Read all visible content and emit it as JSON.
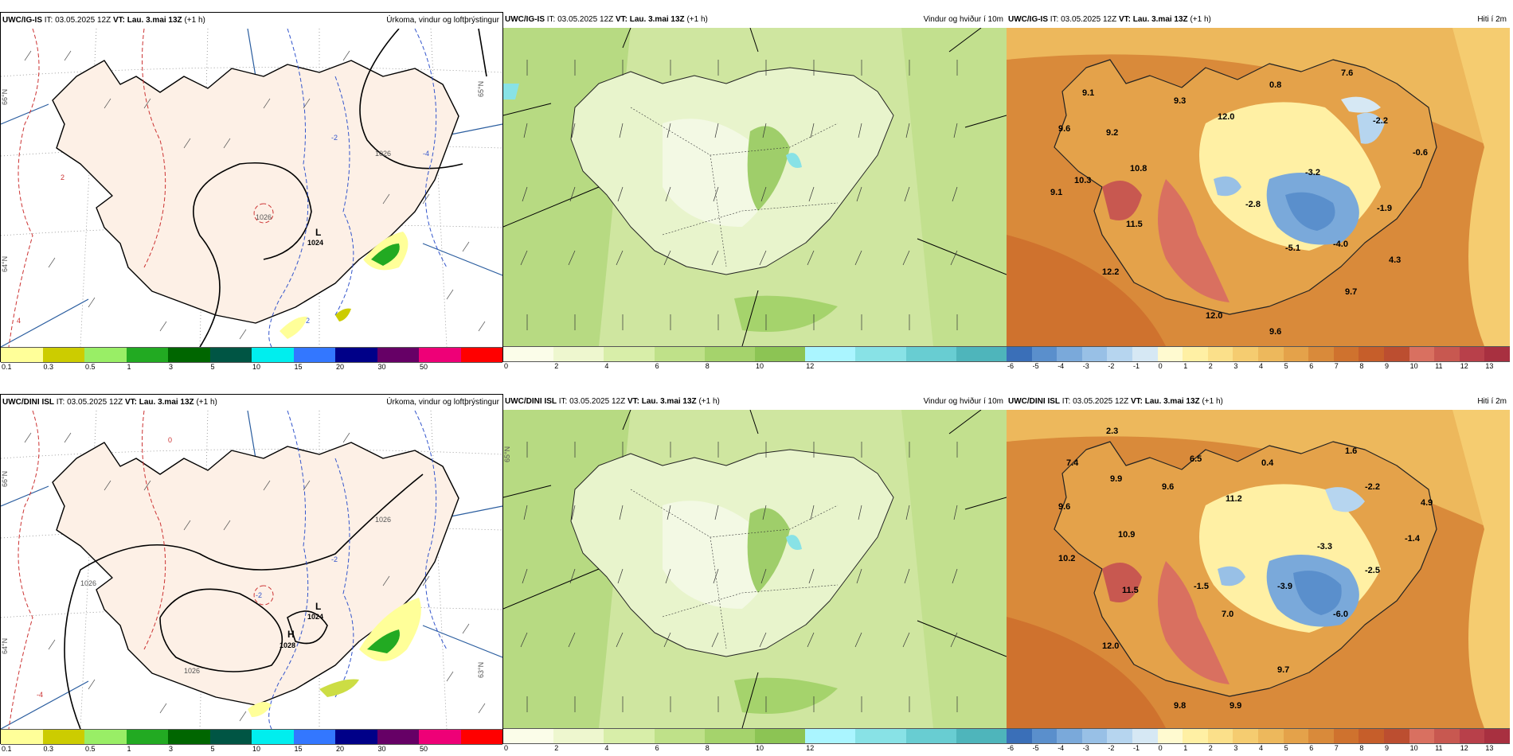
{
  "rows": [
    {
      "model": "UWC/IG-IS",
      "precip": {
        "it_label": "IT:",
        "it_value": "03.05.2025 12Z",
        "vt_label": "VT:",
        "vt_value": "Lau. 3.mai 13Z",
        "lead": "(+1 h)",
        "title_right": "Úrkoma, vindur og loftþrýstingur",
        "isobar_labels": [
          "1026",
          "1026",
          "1024"
        ],
        "pressure_centers": [
          {
            "sym": "L",
            "value": "1024"
          }
        ],
        "contour_labels": [
          "-2",
          "-2",
          "-4",
          "-2",
          "-2",
          "2",
          "4",
          "0",
          "-4"
        ]
      },
      "wind": {
        "it_label": "IT:",
        "it_value": "03.05.2025 12Z",
        "vt_label": "VT:",
        "vt_value": "Lau. 3.mai 13Z",
        "lead": "(+1 h)",
        "title_right": "Vindur og hviður í 10m"
      },
      "temp": {
        "it_label": "IT:",
        "it_value": "03.05.2025 12Z",
        "vt_label": "VT:",
        "vt_value": "Lau. 3.mai 13Z",
        "lead": "(+1 h)",
        "title_right": "Hiti í 2m",
        "labels": [
          "9.1",
          "9.6",
          "9.2",
          "9.3",
          "12.0",
          "0.8",
          "7.6",
          "-2.2",
          "-0.6",
          "10.8",
          "10.3",
          "9.1",
          "-3.2",
          "-2.8",
          "-1.9",
          "11.5",
          "-5.1",
          "-4.0",
          "4.3",
          "12.2",
          "9.7",
          "12.0",
          "9.6"
        ]
      }
    },
    {
      "model": "UWC/DINI ISL",
      "precip": {
        "it_label": "IT:",
        "it_value": "03.05.2025 12Z",
        "vt_label": "VT:",
        "vt_value": "Lau. 3.mai 13Z",
        "lead": "(+1 h)",
        "title_right": "Úrkoma, vindur og loftþrýstingur",
        "isobar_labels": [
          "1026",
          "1026",
          "1026",
          "1024",
          "1028"
        ],
        "pressure_centers": [
          {
            "sym": "L",
            "value": "1024"
          },
          {
            "sym": "H",
            "value": "1028"
          }
        ],
        "contour_labels": [
          "-2",
          "-2",
          "-4",
          "-2",
          "2",
          "0",
          "-4"
        ]
      },
      "wind": {
        "it_label": "IT:",
        "it_value": "03.05.2025 12Z",
        "vt_label": "VT:",
        "vt_value": "Lau. 3.mai 13Z",
        "lead": "(+1 h)",
        "title_right": "Vindur og hviður í 10m"
      },
      "temp": {
        "it_label": "IT:",
        "it_value": "03.05.2025 12Z",
        "vt_label": "VT:",
        "vt_value": "Lau. 3.mai 13Z",
        "lead": "(+1 h)",
        "title_right": "Hiti í 2m",
        "labels": [
          "2.3",
          "7.4",
          "9.9",
          "6.5",
          "0.4",
          "1.6",
          "9.6",
          "9.6",
          "11.2",
          "-2.2",
          "4.9",
          "10.9",
          "-1.4",
          "10.2",
          "-3.3",
          "11.5",
          "-1.5",
          "-3.9",
          "-2.5",
          "7.0",
          "-6.0",
          "12.0",
          "9.7",
          "9.8",
          "9.9"
        ]
      }
    }
  ],
  "lat_labels": [
    "66°N",
    "64°N",
    "65°N",
    "63°N"
  ],
  "colorbars": {
    "precip": {
      "colors": [
        "#ffff99",
        "#cccc00",
        "#99ee66",
        "#22aa22",
        "#006600",
        "#005544",
        "#00eeee",
        "#3377ff",
        "#000088",
        "#660066",
        "#ee0077",
        "#ff0000"
      ],
      "ticks": [
        "0.1",
        "0.3",
        "0.5",
        "1",
        "3",
        "5",
        "10",
        "15",
        "20",
        "30",
        "50"
      ]
    },
    "wind": {
      "colors": [
        "#fbfde9",
        "#eef7cf",
        "#d8eea9",
        "#bfe189",
        "#a5d36c",
        "#8cc454",
        "#aaf5ff",
        "#88e2e6",
        "#68cdd2",
        "#4eb5bb"
      ],
      "ticks": [
        "0",
        "2",
        "4",
        "6",
        "8",
        "10",
        "12"
      ]
    },
    "temp": {
      "colors": [
        "#3a6fb8",
        "#5a8fcc",
        "#7aa9da",
        "#98c0e6",
        "#b6d5ef",
        "#d6e8f4",
        "#fffad0",
        "#fff0a4",
        "#fbe08a",
        "#f5cc70",
        "#edb85c",
        "#e4a24a",
        "#d98a3a",
        "#cf722e",
        "#c65e2a",
        "#bc4e30",
        "#d97060",
        "#c85850",
        "#b8404a",
        "#a83040"
      ],
      "ticks": [
        "-6",
        "-5",
        "-4",
        "-3",
        "-2",
        "-1",
        "0",
        "1",
        "2",
        "3",
        "4",
        "5",
        "6",
        "7",
        "8",
        "9",
        "10",
        "11",
        "12",
        "13"
      ]
    }
  }
}
